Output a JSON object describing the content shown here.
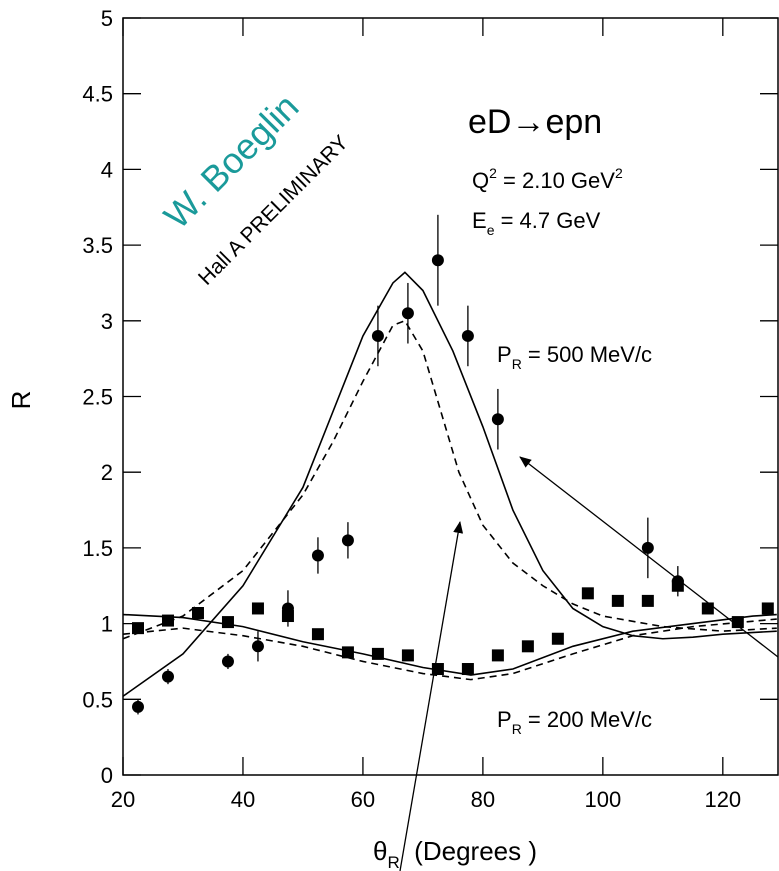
{
  "chart_data": {
    "type": "scatter",
    "y_label": "R",
    "x_label": [
      "θ",
      "R",
      "  (Degrees )"
    ],
    "xlim": [
      20,
      129.2
    ],
    "xticks": [
      20,
      40,
      60,
      80,
      100,
      120
    ],
    "ylim": [
      0,
      5
    ],
    "yticks": [
      0,
      0.5,
      1,
      1.5,
      2,
      2.5,
      3,
      3.5,
      4,
      4.5,
      5
    ],
    "annotations": [
      [
        "W. Boeglin"
      ],
      [
        "Hall A PRELIMINARY"
      ],
      [
        "eD→epn"
      ],
      [
        "Q",
        "2",
        " = 2.10 GeV",
        "2"
      ],
      [
        "E",
        "e",
        " = 4.7 GeV"
      ],
      [
        "P",
        "R",
        " = 500 MeV/c"
      ],
      [
        "P",
        "R",
        " = 200 MeV/c"
      ]
    ],
    "series": [
      {
        "kind": "points",
        "marker": "circle",
        "color": "#000000",
        "x": [
          22.5,
          27.5,
          37.5,
          42.5,
          47.5,
          52.5,
          57.5,
          62.5,
          67.5,
          72.5,
          77.5,
          82.5,
          107.5,
          112.5
        ],
        "values": [
          0.45,
          0.65,
          0.75,
          0.85,
          1.1,
          1.45,
          1.55,
          2.9,
          3.05,
          3.4,
          2.9,
          2.35,
          1.5,
          1.28
        ],
        "errors": [
          0.05,
          0.05,
          0.05,
          0.1,
          0.12,
          0.12,
          0.12,
          0.2,
          0.2,
          0.3,
          0.2,
          0.2,
          0.2,
          0.1
        ]
      },
      {
        "kind": "points",
        "marker": "square",
        "color": "#000000",
        "x": [
          22.5,
          27.5,
          32.5,
          37.5,
          42.5,
          47.5,
          52.5,
          57.5,
          62.5,
          67.5,
          72.5,
          77.5,
          82.5,
          87.5,
          92.5,
          97.5,
          102.5,
          107.5,
          112.5,
          117.5,
          122.5,
          127.5
        ],
        "values": [
          0.97,
          1.02,
          1.07,
          1.01,
          1.1,
          1.05,
          0.93,
          0.81,
          0.8,
          0.79,
          0.7,
          0.7,
          0.79,
          0.85,
          0.9,
          1.2,
          1.15,
          1.15,
          1.25,
          1.1,
          1.01,
          1.1
        ]
      },
      {
        "kind": "line",
        "dash": false,
        "color": "#000000",
        "x": [
          20,
          30,
          40,
          50,
          55,
          60,
          65,
          67,
          70,
          75,
          80,
          85,
          90,
          95,
          100,
          105,
          110,
          115,
          120,
          129
        ],
        "values": [
          0.52,
          0.8,
          1.25,
          1.9,
          2.4,
          2.9,
          3.25,
          3.32,
          3.2,
          2.8,
          2.3,
          1.75,
          1.35,
          1.1,
          0.98,
          0.92,
          0.9,
          0.91,
          0.93,
          0.95
        ]
      },
      {
        "kind": "line",
        "dash": true,
        "color": "#000000",
        "x": [
          20,
          30,
          40,
          50,
          55,
          60,
          65,
          67,
          70,
          73,
          76,
          80,
          85,
          90,
          95,
          100,
          110,
          120,
          129
        ],
        "values": [
          0.9,
          1.05,
          1.35,
          1.85,
          2.2,
          2.6,
          2.97,
          3.0,
          2.8,
          2.4,
          2.0,
          1.65,
          1.4,
          1.25,
          1.13,
          1.05,
          0.98,
          0.95,
          0.97
        ]
      },
      {
        "kind": "line",
        "dash": false,
        "color": "#000000",
        "x": [
          20,
          30,
          40,
          50,
          60,
          70,
          78,
          85,
          95,
          105,
          115,
          125,
          129
        ],
        "values": [
          1.06,
          1.04,
          0.98,
          0.88,
          0.8,
          0.71,
          0.66,
          0.7,
          0.85,
          0.95,
          1.0,
          1.05,
          1.06
        ]
      },
      {
        "kind": "line",
        "dash": true,
        "color": "#000000",
        "x": [
          20,
          30,
          40,
          50,
          60,
          70,
          78,
          85,
          95,
          105,
          115,
          129
        ],
        "values": [
          0.93,
          0.97,
          0.92,
          0.85,
          0.75,
          0.67,
          0.63,
          0.67,
          0.8,
          0.92,
          0.98,
          1.03
        ]
      }
    ]
  }
}
